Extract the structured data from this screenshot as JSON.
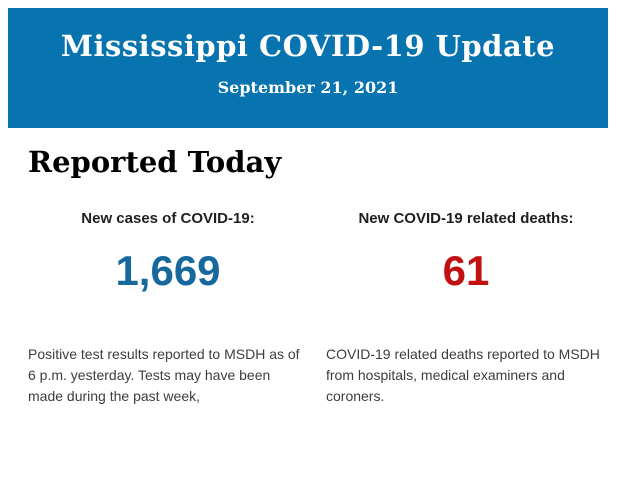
{
  "header": {
    "title": "Mississippi COVID-19 Update",
    "date": "September 21, 2021",
    "bg_color": "#0774b0",
    "text_color": "#ffffff"
  },
  "main": {
    "heading": "Reported Today",
    "columns": [
      {
        "label": "New cases of COVID-19:",
        "value": "1,669",
        "value_color": "#17699d",
        "description": "Positive test results reported to MSDH as of 6 p.m. yesterday. Tests may have been made during the past week,"
      },
      {
        "label": "New COVID-19 related deaths:",
        "value": "61",
        "value_color": "#c20f0f",
        "description": "COVID-19 related deaths reported to MSDH from hospitals, medical examiners and coroners."
      }
    ]
  }
}
